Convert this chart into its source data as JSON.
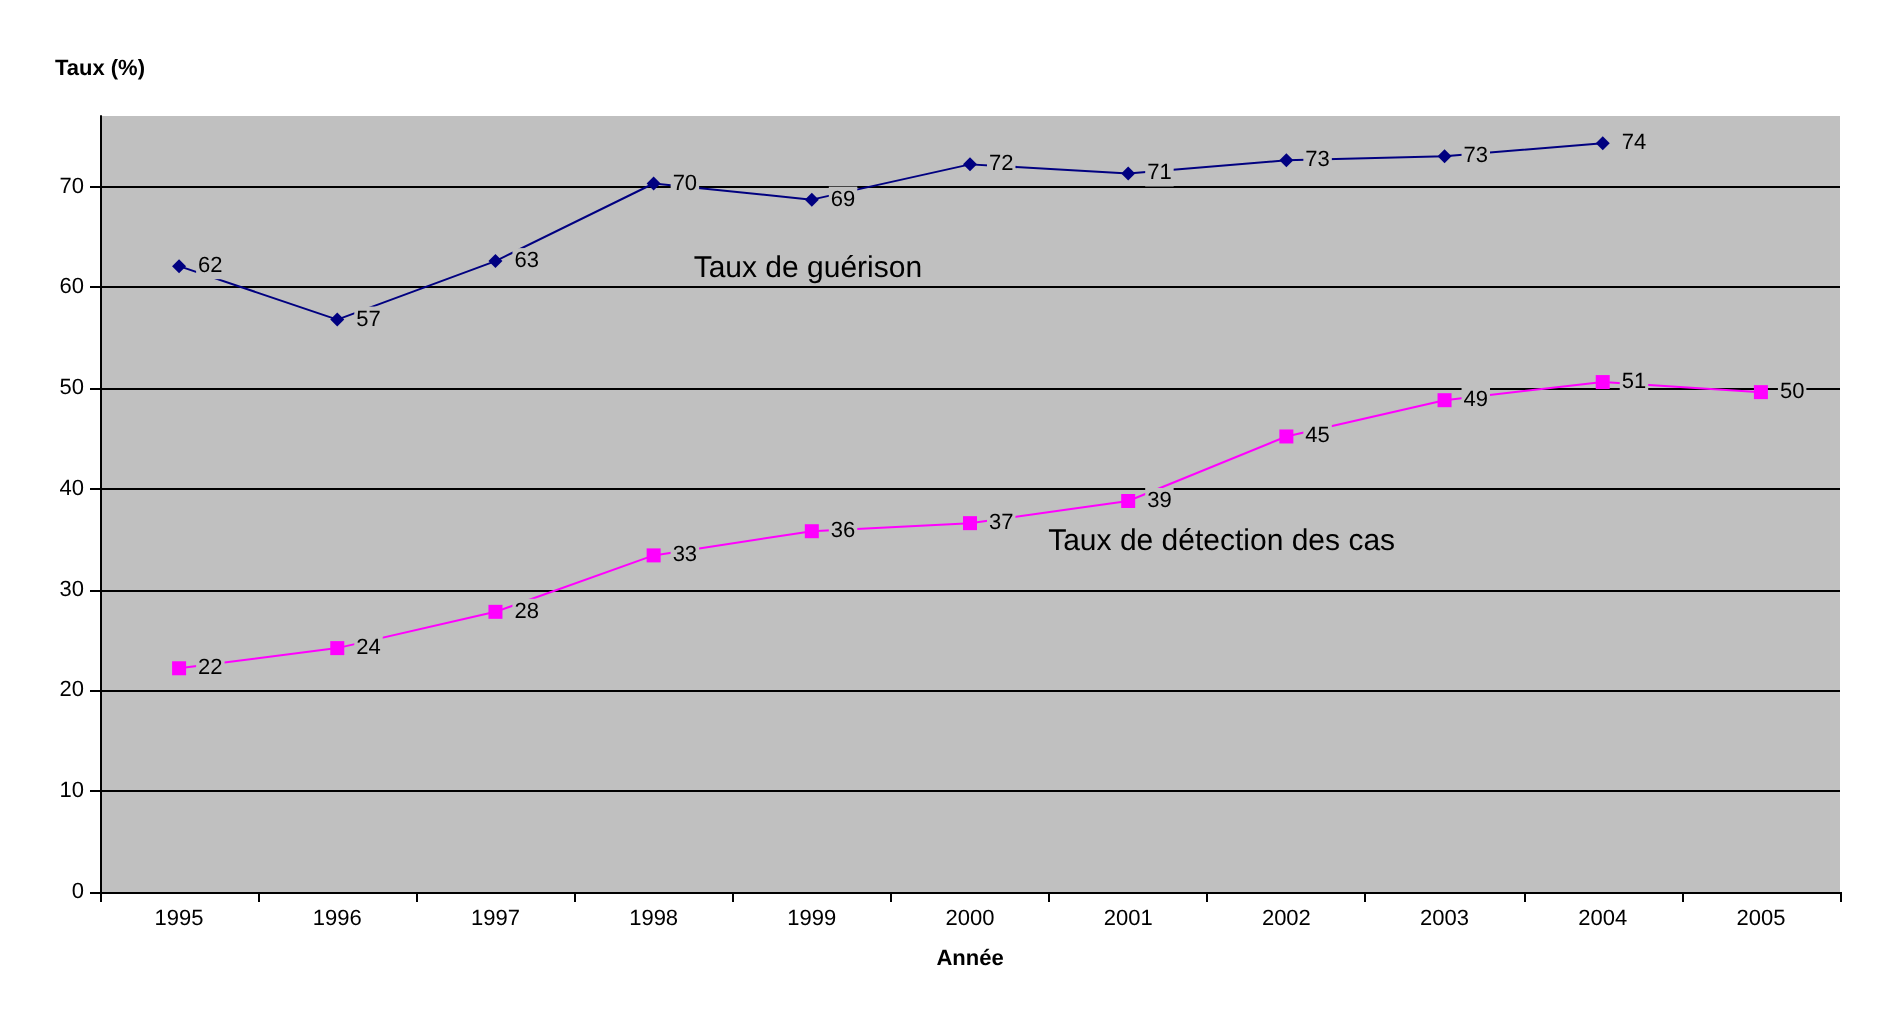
{
  "chart_data": {
    "type": "line",
    "xlabel": "Année",
    "ylabel": "Taux (%)",
    "categories": [
      "1995",
      "1996",
      "1997",
      "1998",
      "1999",
      "2000",
      "2001",
      "2002",
      "2003",
      "2004",
      "2005"
    ],
    "series": [
      {
        "name": "Taux de guérison",
        "color": "#000080",
        "marker": "diamond",
        "values": [
          62.1,
          56.8,
          62.6,
          70.3,
          68.7,
          72.2,
          71.3,
          72.6,
          73,
          74.3,
          null
        ],
        "value_labels": [
          "62",
          "57",
          "63",
          "70",
          "69",
          "72",
          "71",
          "73",
          "73",
          "74",
          null
        ]
      },
      {
        "name": "Taux de détection des cas",
        "color": "#ff00ff",
        "marker": "square",
        "values": [
          22.2,
          24.2,
          27.8,
          33.4,
          35.8,
          36.6,
          38.8,
          45.2,
          48.8,
          50.6,
          49.6
        ],
        "value_labels": [
          "22",
          "24",
          "28",
          "33",
          "36",
          "37",
          "39",
          "45",
          "49",
          "51",
          "50"
        ]
      }
    ],
    "ylim": [
      0,
      77
    ],
    "yticks": [
      0,
      10,
      20,
      30,
      40,
      50,
      60,
      70
    ],
    "grid": "y"
  }
}
